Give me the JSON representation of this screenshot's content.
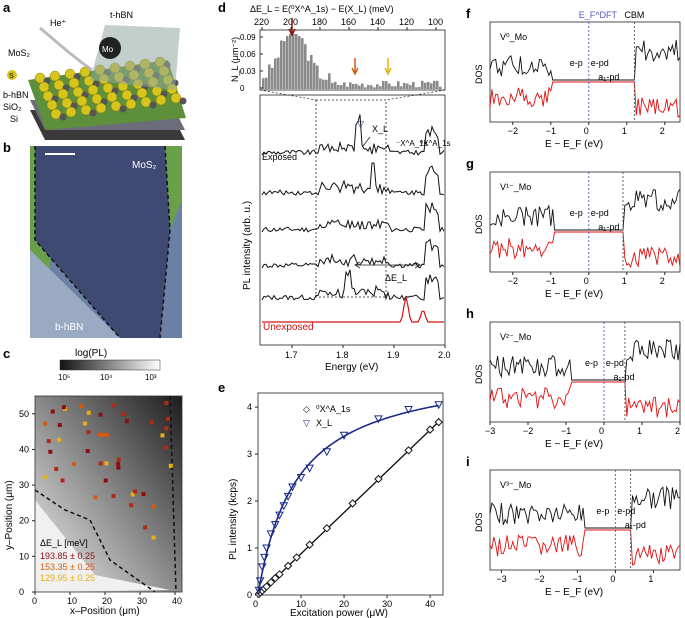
{
  "panels": {
    "a": {
      "letter": "a",
      "labels": {
        "he": "He⁺",
        "thbn": "t-hBN",
        "mos2": "MoS₂",
        "mo": "Mo",
        "s": "S",
        "bhbn": "b-hBN",
        "sio2": "SiO₂",
        "si": "Si"
      }
    },
    "b": {
      "letter": "b",
      "labels": {
        "mos2": "MoS₂",
        "bhbn": "b-hBN"
      }
    },
    "c": {
      "letter": "c",
      "colorbar_title": "log(PL)",
      "colorbar_ticks": [
        "10⁵",
        "10⁴",
        "10³"
      ],
      "xlabel": "x–Position (μm)",
      "ylabel": "y–Position (μm)",
      "xticks": [
        "0",
        "10",
        "20",
        "30",
        "40"
      ],
      "yticks": [
        "0",
        "10",
        "20",
        "30",
        "40",
        "50"
      ],
      "legend_title": "ΔE_L [meV]",
      "legend": [
        {
          "text": "193.85 ± 0.25",
          "color": "#8b0f12"
        },
        {
          "text": "153.35 ± 0.25",
          "color": "#d45a10"
        },
        {
          "text": "129.95 ± 0.25",
          "color": "#e8b012"
        }
      ]
    },
    "d": {
      "letter": "d",
      "top_axis_label": "ΔE_L = E(⁰X^A_1s) − E(X_L) (meV)",
      "top_ticks": [
        "220",
        "200",
        "180",
        "160",
        "140",
        "120",
        "100"
      ],
      "hist_ylabel": "N_L (μm⁻²)",
      "hist_yticks": [
        "0",
        "0.03",
        "0.06",
        "0.09"
      ],
      "ylabel": "PL intensity (arb. u.)",
      "xlabel": "Energy (eV)",
      "xticks": [
        "1.7",
        "1.8",
        "1.9",
        "2.0"
      ],
      "labels": {
        "exposed": "Exposed",
        "unexposed": "Unexposed",
        "xl": "X_L",
        "x1s_minus": "⁻X^A_1s",
        "x1s_zero": "⁰X^A_1s",
        "delta_el": "ΔE_L"
      }
    },
    "e": {
      "letter": "e",
      "xlabel": "Excitation power (μW)",
      "ylabel": "PL intensity (kcps)",
      "xticks": [
        "0",
        "10",
        "20",
        "30",
        "40"
      ],
      "yticks": [
        "0",
        "1",
        "2",
        "3",
        "4"
      ],
      "legend": [
        {
          "text": "⁰X^A_1s",
          "symbol": "◇"
        },
        {
          "text": "X_L",
          "symbol": "▽"
        }
      ]
    },
    "f": {
      "letter": "f",
      "defect": "V⁰_Mo",
      "xticks": [
        "−2",
        "−1",
        "0",
        "1",
        "2"
      ]
    },
    "g": {
      "letter": "g",
      "defect": "V¹⁻_Mo",
      "xticks": [
        "−2",
        "−1",
        "0",
        "1",
        "2"
      ]
    },
    "h": {
      "letter": "h",
      "defect": "V²⁻_Mo",
      "xticks": [
        "−3",
        "−2",
        "−1",
        "0",
        "1",
        "2"
      ]
    },
    "i": {
      "letter": "i",
      "defect": "V³⁻_Mo",
      "xticks": [
        "−3",
        "−2",
        "−1",
        "0",
        "1"
      ]
    },
    "dos_common": {
      "ylabel": "DOS",
      "xlabel": "E − E_F (eV)",
      "ef_label": "E_F^DFT",
      "cbm_label": "CBM",
      "ep": "e-p",
      "epd": "e-pd",
      "a1pd": "a₁-pd"
    }
  },
  "chart_data": [
    {
      "panel": "e",
      "type": "scatter",
      "title": "",
      "xlabel": "Excitation power (μW)",
      "ylabel": "PL intensity (kcps)",
      "xlim": [
        0,
        43
      ],
      "ylim": [
        0,
        4.3
      ],
      "series": [
        {
          "name": "⁰X^A_1s",
          "color": "#111111",
          "x": [
            0.2,
            0.5,
            1,
            1.5,
            2,
            3,
            4,
            5,
            7,
            9,
            12,
            16,
            22,
            28,
            35,
            40,
            42
          ],
          "y": [
            0.02,
            0.05,
            0.09,
            0.14,
            0.18,
            0.27,
            0.36,
            0.44,
            0.62,
            0.8,
            1.07,
            1.42,
            1.95,
            2.47,
            3.08,
            3.52,
            3.68
          ]
        },
        {
          "name": "X_L",
          "color": "#1b2b8a",
          "x": [
            0.2,
            0.5,
            1,
            1.5,
            2,
            3,
            4,
            5,
            6,
            7,
            8,
            10,
            12,
            16,
            20,
            28,
            35,
            42
          ],
          "y": [
            0.1,
            0.3,
            0.6,
            0.8,
            1.0,
            1.3,
            1.5,
            1.7,
            1.9,
            2.1,
            2.3,
            2.5,
            2.7,
            3.05,
            3.4,
            3.75,
            3.95,
            4.05
          ]
        }
      ]
    }
  ]
}
